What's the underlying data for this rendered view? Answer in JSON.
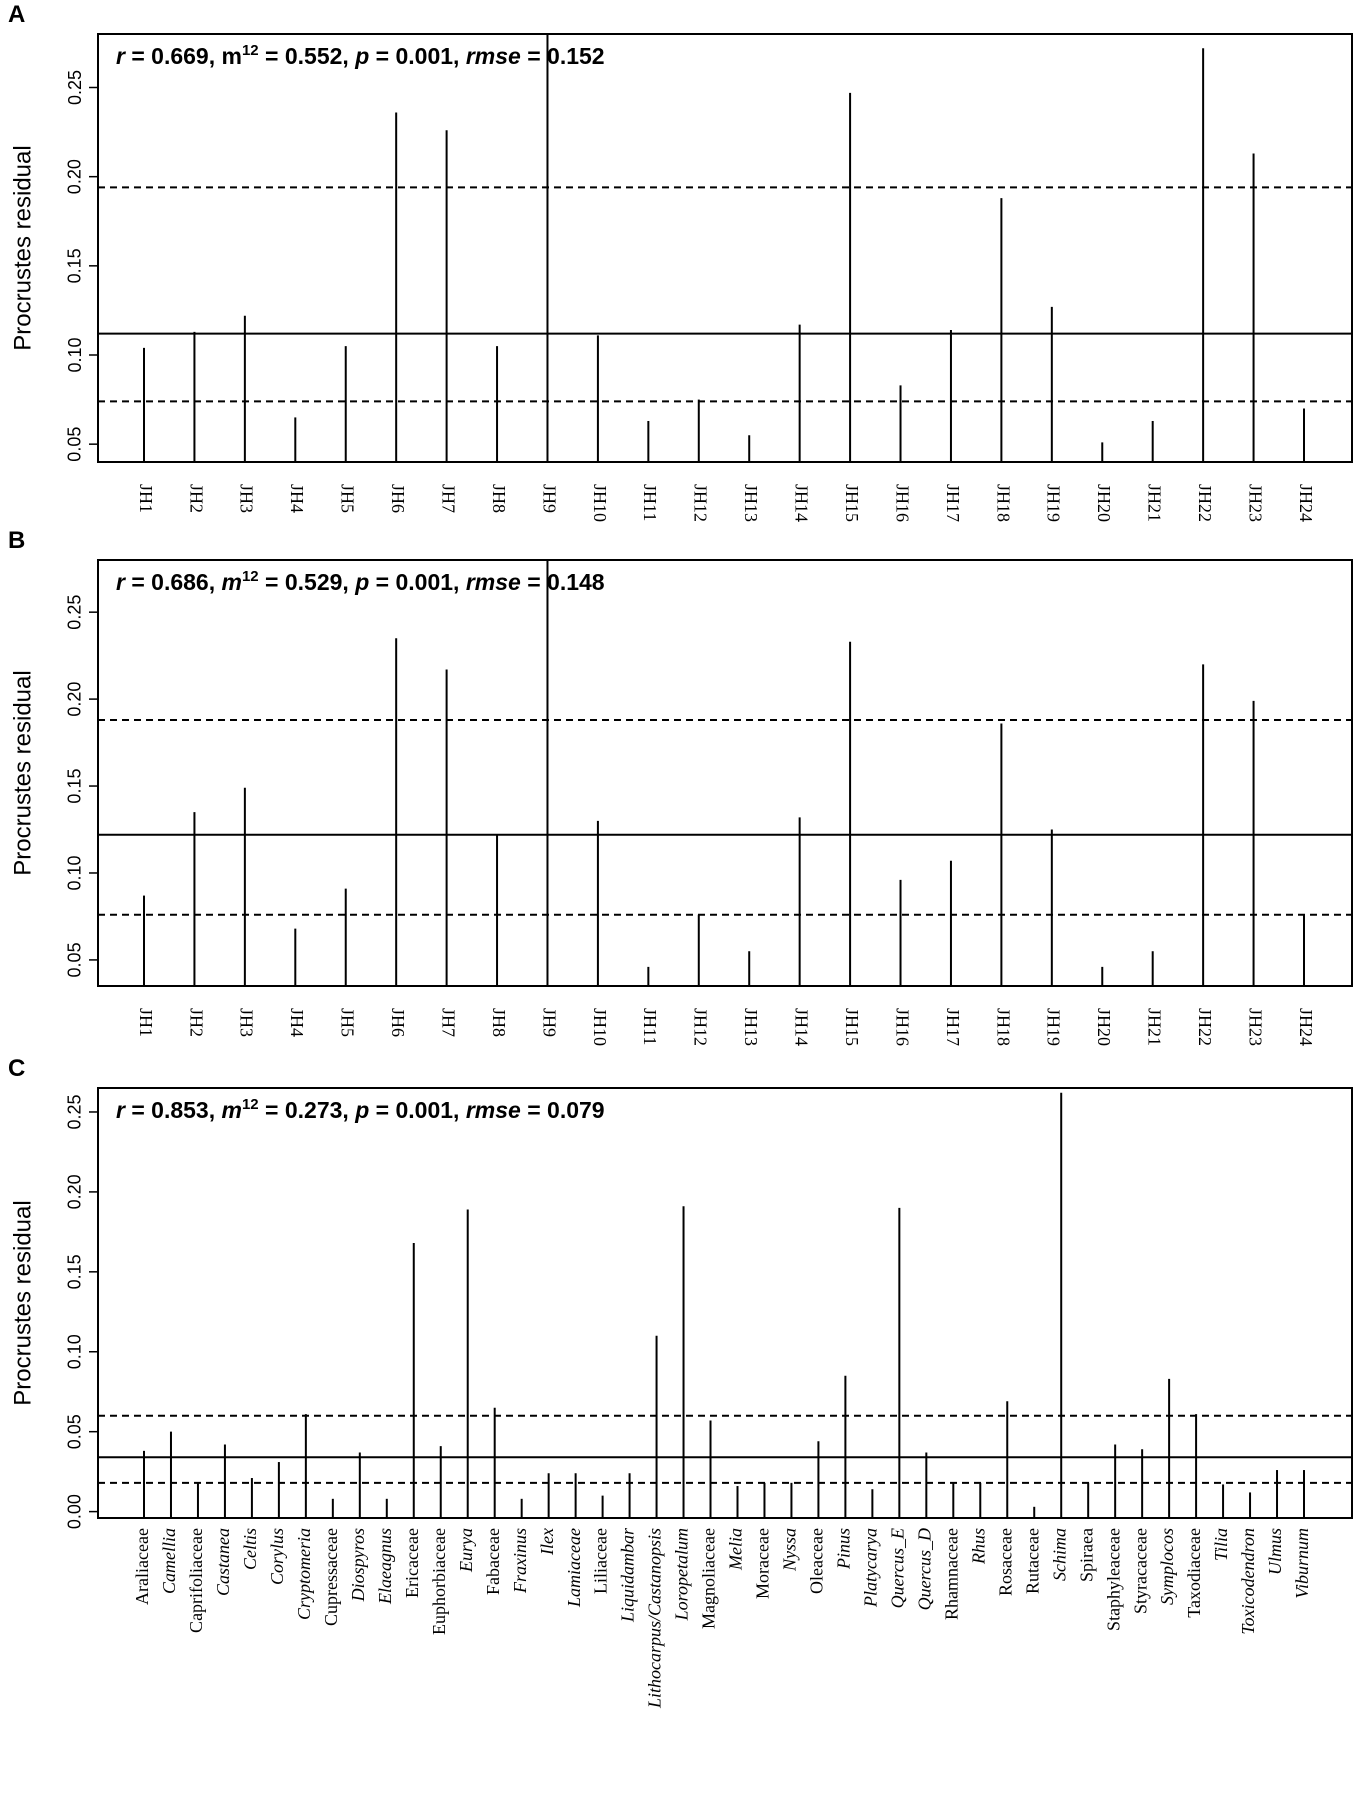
{
  "chart_data": [
    {
      "panel": "A",
      "type": "bar",
      "stats": {
        "r": "0.669",
        "m12": "0.552",
        "p": "0.001",
        "rmse": "0.152"
      },
      "ylabel": "Procrustes residual",
      "ylim": [
        0.04,
        0.28
      ],
      "yticks": [
        "0.05",
        "0.10",
        "0.15",
        "0.20",
        "0.25"
      ],
      "reference_lines": {
        "median": 0.112,
        "lower_dashed": 0.074,
        "upper_dashed": 0.194
      },
      "categories": [
        "JH1",
        "JH2",
        "JH3",
        "JH4",
        "JH5",
        "JH6",
        "JH7",
        "JH8",
        "JH9",
        "JH10",
        "JH11",
        "JH12",
        "JH13",
        "JH14",
        "JH15",
        "JH16",
        "JH17",
        "JH18",
        "JH19",
        "JH20",
        "JH21",
        "JH22",
        "JH23",
        "JH24"
      ],
      "italic": [
        false,
        false,
        false,
        false,
        false,
        false,
        false,
        false,
        false,
        false,
        false,
        false,
        false,
        false,
        false,
        false,
        false,
        false,
        false,
        false,
        false,
        false,
        false,
        false
      ],
      "values": [
        0.104,
        0.113,
        0.122,
        0.065,
        0.105,
        0.236,
        0.226,
        0.105,
        0.284,
        0.111,
        0.063,
        0.075,
        0.055,
        0.117,
        0.247,
        0.083,
        0.114,
        0.188,
        0.127,
        0.051,
        0.063,
        0.272,
        0.213,
        0.07
      ]
    },
    {
      "panel": "B",
      "type": "bar",
      "stats": {
        "r": "0.686",
        "m12": "0.529",
        "p": "0.001",
        "rmse": "0.148"
      },
      "ylabel": "Procrustes residual",
      "ylim": [
        0.035,
        0.28
      ],
      "yticks": [
        "0.05",
        "0.10",
        "0.15",
        "0.20",
        "0.25"
      ],
      "reference_lines": {
        "median": 0.122,
        "lower_dashed": 0.076,
        "upper_dashed": 0.188
      },
      "categories": [
        "JH1",
        "JH2",
        "JH3",
        "JH4",
        "JH5",
        "JH6",
        "JH7",
        "JH8",
        "JH9",
        "JH10",
        "JH11",
        "JH12",
        "JH13",
        "JH14",
        "JH15",
        "JH16",
        "JH17",
        "JH18",
        "JH19",
        "JH20",
        "JH21",
        "JH22",
        "JH23",
        "JH24"
      ],
      "italic": [
        false,
        false,
        false,
        false,
        false,
        false,
        false,
        false,
        false,
        false,
        false,
        false,
        false,
        false,
        false,
        false,
        false,
        false,
        false,
        false,
        false,
        false,
        false,
        false
      ],
      "values": [
        0.087,
        0.135,
        0.149,
        0.068,
        0.091,
        0.235,
        0.217,
        0.122,
        0.281,
        0.13,
        0.046,
        0.076,
        0.055,
        0.132,
        0.233,
        0.096,
        0.107,
        0.186,
        0.125,
        0.046,
        0.055,
        0.22,
        0.199,
        0.076
      ]
    },
    {
      "panel": "C",
      "type": "bar",
      "stats": {
        "r": "0.853",
        "m12": "0.273",
        "p": "0.001",
        "rmse": "0.079"
      },
      "ylabel": "Procrustes residual",
      "ylim": [
        -0.004,
        0.265
      ],
      "yticks": [
        "0.00",
        "0.05",
        "0.10",
        "0.15",
        "0.20",
        "0.25"
      ],
      "reference_lines": {
        "median": 0.034,
        "lower_dashed": 0.018,
        "upper_dashed": 0.06
      },
      "categories": [
        "Araliaceae",
        "Camellia",
        "Caprifoliaceae",
        "Castanea",
        "Celtis",
        "Corylus",
        "Cryptomeria",
        "Cupressaceae",
        "Diospyros",
        "Elaeagnus",
        "Ericaceae",
        "Euphorbiaceae",
        "Eurya",
        "Fabaceae",
        "Fraxinus",
        "Ilex",
        "Lamiaceae",
        "Liliaceae",
        "Liquidambar",
        "Lithocarpus/Castanopsis",
        "Loropetalum",
        "Magnoliaceae",
        "Melia",
        "Moraceae",
        "Nyssa",
        "Oleaceae",
        "Pinus",
        "Platycarya",
        "Quercus_E",
        "Quercus_D",
        "Rhamnaceae",
        "Rhus",
        "Rosaceae",
        "Rutaceae",
        "Schima",
        "Spiraea",
        "Staphyleaceae",
        "Styracaceae",
        "Symplocos",
        "Taxodiaceae",
        "Tilia",
        "Toxicodendron",
        "Ulmus",
        "Viburnum"
      ],
      "italic": [
        false,
        true,
        false,
        true,
        true,
        true,
        true,
        false,
        true,
        true,
        false,
        false,
        true,
        false,
        true,
        true,
        true,
        false,
        true,
        true,
        true,
        false,
        true,
        false,
        true,
        false,
        true,
        true,
        true,
        true,
        false,
        true,
        false,
        false,
        true,
        false,
        false,
        false,
        true,
        false,
        true,
        true,
        true,
        true
      ],
      "values": [
        0.038,
        0.05,
        0.018,
        0.042,
        0.021,
        0.031,
        0.061,
        0.008,
        0.037,
        0.008,
        0.168,
        0.041,
        0.189,
        0.065,
        0.008,
        0.024,
        0.024,
        0.01,
        0.024,
        0.11,
        0.191,
        0.057,
        0.016,
        0.018,
        0.018,
        0.044,
        0.085,
        0.014,
        0.19,
        0.037,
        0.018,
        0.018,
        0.069,
        0.003,
        0.262,
        0.018,
        0.042,
        0.039,
        0.083,
        0.061,
        0.017,
        0.012,
        0.026,
        0.026
      ]
    }
  ]
}
